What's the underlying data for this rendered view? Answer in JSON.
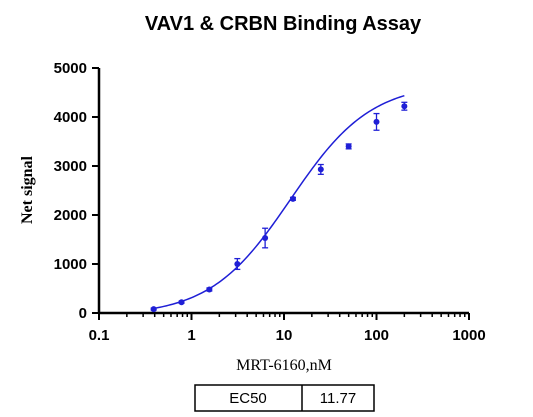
{
  "chart_data": {
    "type": "scatter",
    "title": "VAV1 & CRBN Binding  Assay",
    "xlabel": "MRT-6160,nM",
    "ylabel": "Net signal",
    "x_scale": "log",
    "xlim": [
      0.1,
      1000
    ],
    "ylim": [
      0,
      5000
    ],
    "x_ticks": [
      0.1,
      1,
      10,
      100,
      1000
    ],
    "x_tick_labels": [
      "0.1",
      "1",
      "10",
      "100",
      "1000"
    ],
    "y_ticks": [
      0,
      1000,
      2000,
      3000,
      4000,
      5000
    ],
    "y_tick_labels": [
      "0",
      "1000",
      "2000",
      "3000",
      "4000",
      "5000"
    ],
    "grid": false,
    "series": [
      {
        "color": "#1f1fd6",
        "points": [
          {
            "x": 0.39,
            "y": 80,
            "err": 20
          },
          {
            "x": 0.78,
            "y": 220,
            "err": 20
          },
          {
            "x": 1.56,
            "y": 480,
            "err": 30
          },
          {
            "x": 3.13,
            "y": 1000,
            "err": 110
          },
          {
            "x": 6.25,
            "y": 1530,
            "err": 200
          },
          {
            "x": 12.5,
            "y": 2330,
            "err": 30
          },
          {
            "x": 25,
            "y": 2930,
            "err": 100
          },
          {
            "x": 50,
            "y": 3400,
            "err": 50
          },
          {
            "x": 100,
            "y": 3900,
            "err": 170
          },
          {
            "x": 200,
            "y": 4220,
            "err": 80
          }
        ]
      }
    ],
    "fit_curve": {
      "model": "4PL",
      "bottom": -60,
      "top": 4700,
      "ec50": 11.77,
      "hill": 1.0,
      "x_range": [
        0.39,
        200
      ]
    },
    "results_table": {
      "label": "EC50",
      "value": "11.77"
    }
  }
}
